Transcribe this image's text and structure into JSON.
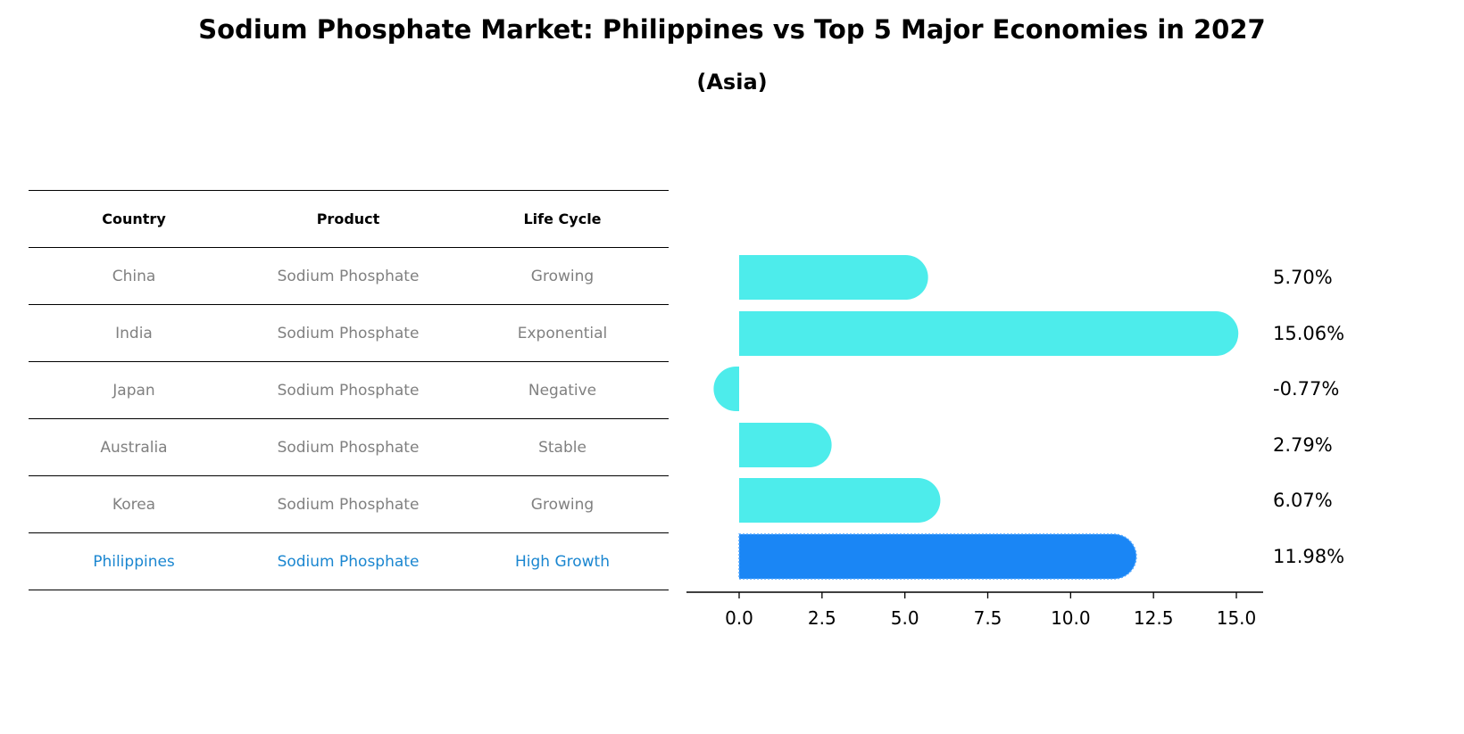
{
  "title": "Sodium Phosphate Market: Philippines vs Top 5 Major Economies in 2027",
  "subtitle": "(Asia)",
  "table": {
    "headers": [
      "Country",
      "Product",
      "Life Cycle"
    ],
    "rows": [
      {
        "country": "China",
        "product": "Sodium Phosphate",
        "life_cycle": "Growing"
      },
      {
        "country": "India",
        "product": "Sodium Phosphate",
        "life_cycle": "Exponential"
      },
      {
        "country": "Japan",
        "product": "Sodium Phosphate",
        "life_cycle": "Negative"
      },
      {
        "country": "Australia",
        "product": "Sodium Phosphate",
        "life_cycle": "Stable"
      },
      {
        "country": "Korea",
        "product": "Sodium Phosphate",
        "life_cycle": "Growing"
      },
      {
        "country": "Philippines",
        "product": "Sodium Phosphate",
        "life_cycle": "High Growth"
      }
    ]
  },
  "colors": {
    "bar": "#4deceb",
    "highlight_bar": "#1a86f5",
    "highlight_text": "#1a86d0",
    "muted_text": "#808080"
  },
  "chart_data": {
    "type": "bar",
    "orientation": "horizontal",
    "title": "Sodium Phosphate Market: Philippines vs Top 5 Major Economies in 2027",
    "subtitle": "(Asia)",
    "categories": [
      "China",
      "India",
      "Japan",
      "Australia",
      "Korea",
      "Philippines"
    ],
    "values": [
      5.7,
      15.06,
      -0.77,
      2.79,
      6.07,
      11.98
    ],
    "value_labels": [
      "5.70%",
      "15.06%",
      "-0.77%",
      "2.79%",
      "6.07%",
      "11.98%"
    ],
    "highlight": "Philippines",
    "xlabel": "",
    "ylabel": "",
    "xticks": [
      "0.0",
      "2.5",
      "5.0",
      "7.5",
      "10.0",
      "12.5",
      "15.0"
    ],
    "xlim": [
      -1.6,
      15.8
    ],
    "grid": false,
    "legend": null
  }
}
